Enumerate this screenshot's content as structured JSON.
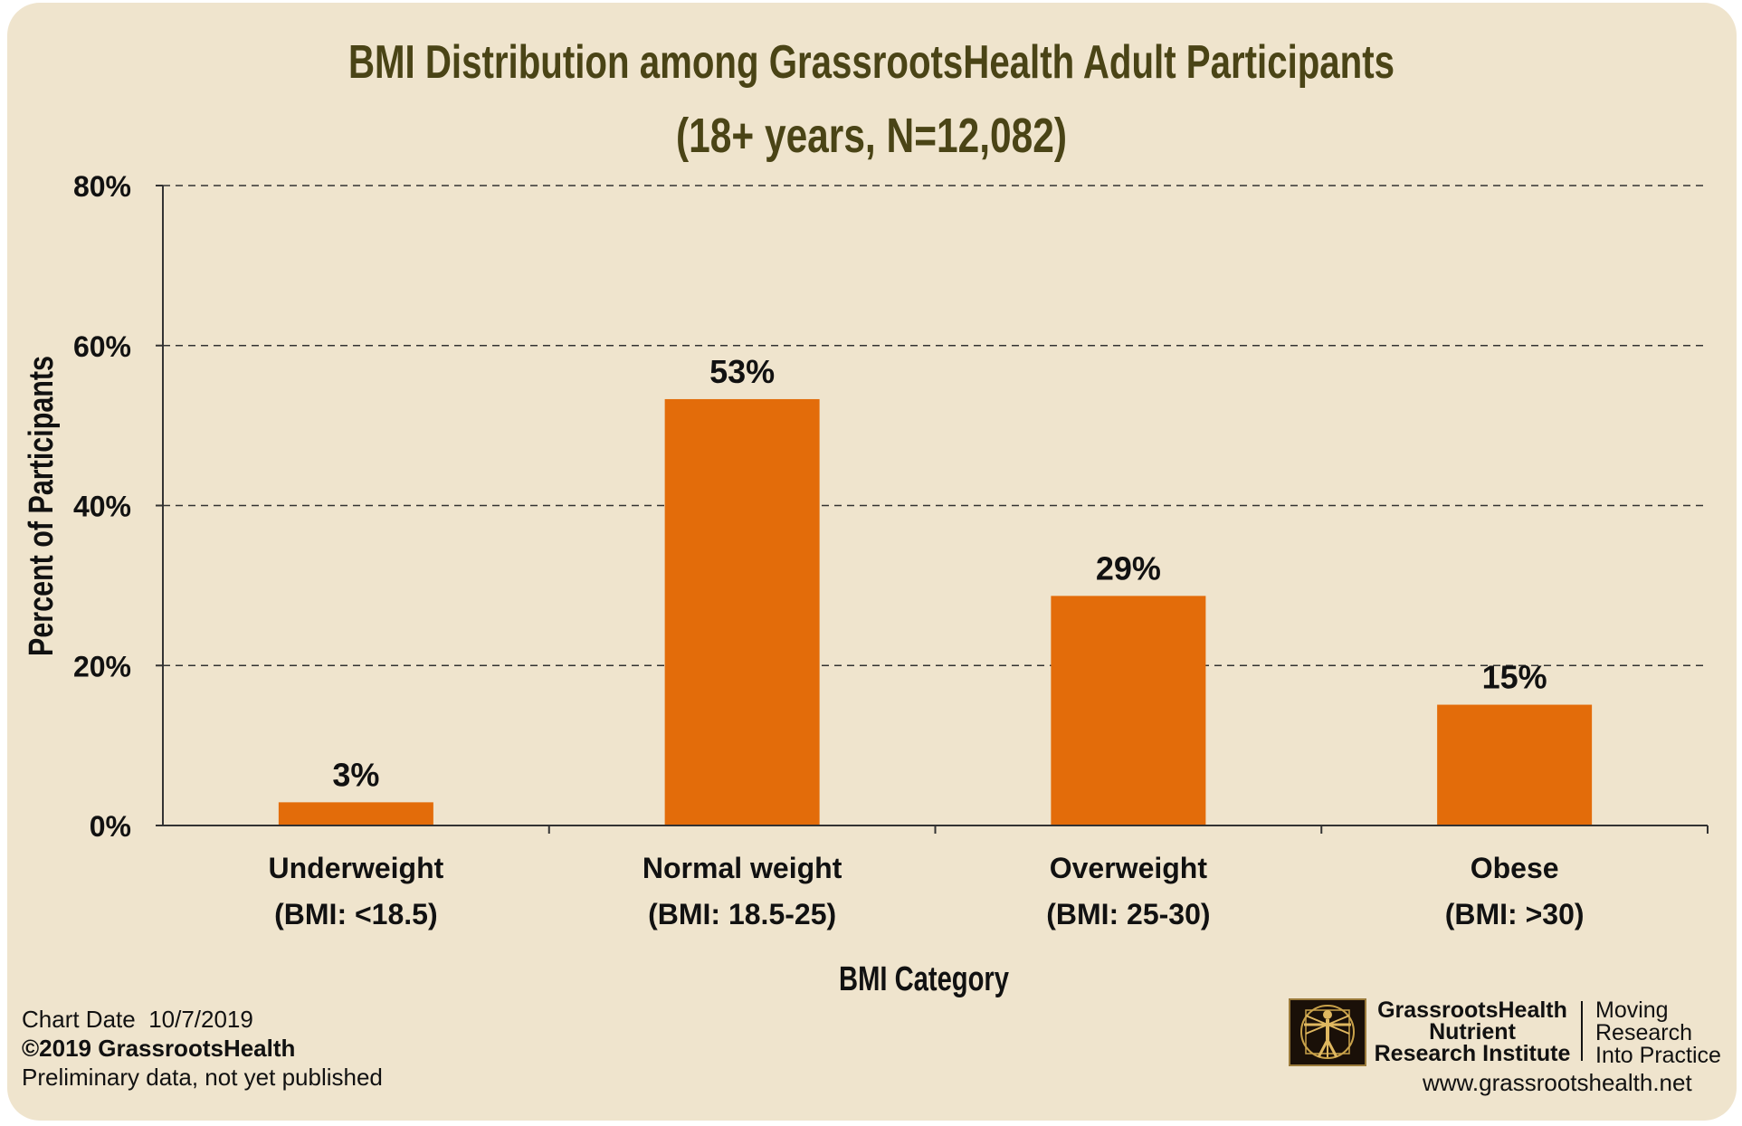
{
  "chart_data": {
    "type": "bar",
    "title": "BMI Distribution among GrassrootsHealth Adult Participants",
    "subtitle": "(18+ years, N=12,082)",
    "xlabel": "BMI Category",
    "ylabel": "Percent of Participants",
    "categories": [
      [
        "Underweight",
        "(BMI: <18.5)"
      ],
      [
        "Normal weight",
        "(BMI: 18.5-25)"
      ],
      [
        "Overweight",
        "(BMI: 25-30)"
      ],
      [
        "Obese",
        "(BMI: >30)"
      ]
    ],
    "values": [
      3,
      53,
      29,
      15
    ],
    "bar_heights_estimated": [
      2.9,
      53.3,
      28.7,
      15.1
    ],
    "data_labels": [
      "3%",
      "53%",
      "29%",
      "15%"
    ],
    "ylim": [
      0,
      80
    ],
    "yticks": [
      0,
      20,
      40,
      60,
      80
    ],
    "ytick_labels": [
      "0%",
      "20%",
      "40%",
      "60%",
      "80%"
    ],
    "grid": "horizontal dashed",
    "bar_color": "#e36c0a",
    "title_color": "#4a4416",
    "background_color": "#efe4cd"
  },
  "footer": {
    "chart_date_label": "Chart Date",
    "chart_date": "10/7/2019",
    "copyright": "©2019 GrassrootsHealth",
    "note": "Preliminary data, not yet published"
  },
  "branding": {
    "logo_icon": "vitruvian-man-icon",
    "org_line1": "GrassrootsHealth",
    "org_line2": "Nutrient",
    "org_line3": "Research Institute",
    "tagline1": "Moving",
    "tagline2": "Research",
    "tagline3": "Into Practice",
    "website": "www.grassrootshealth.net"
  }
}
